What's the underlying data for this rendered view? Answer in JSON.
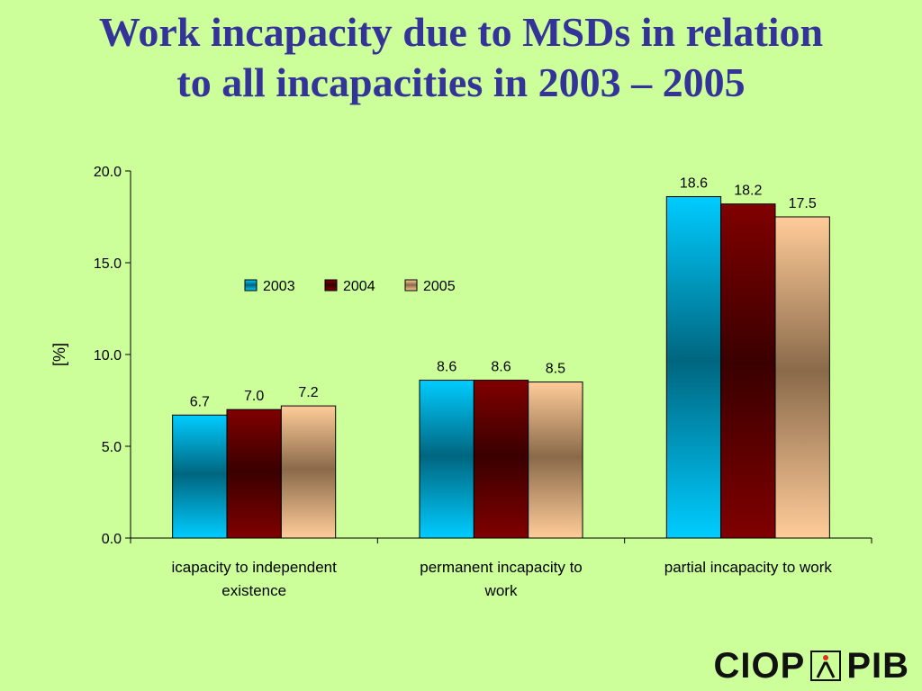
{
  "title": {
    "line1": "Work incapacity due to MSDs in relation",
    "line2": "to all incapacities in 2003 – 2005"
  },
  "logo": {
    "left": "CIOP",
    "right": "PIB"
  },
  "chart_data": {
    "type": "bar",
    "categories": [
      [
        "icapacity to independent",
        "existence"
      ],
      [
        "permanent incapacity to",
        "work"
      ],
      [
        "partial incapacity to work"
      ]
    ],
    "series": [
      {
        "name": "2003",
        "values": [
          6.7,
          8.6,
          18.6
        ],
        "labels": [
          "6.7",
          "8.6",
          "18.6"
        ],
        "color": "#00ccff",
        "dark": "#006680"
      },
      {
        "name": "2004",
        "values": [
          7.0,
          8.6,
          18.2
        ],
        "labels": [
          "7.0",
          "8.6",
          "18.2"
        ],
        "color": "#800000",
        "dark": "#3a0000"
      },
      {
        "name": "2005",
        "values": [
          7.2,
          8.5,
          17.5
        ],
        "labels": [
          "7.2",
          "8.5",
          "17.5"
        ],
        "color": "#ffcc99",
        "dark": "#8a6a4a"
      }
    ],
    "ylabel": "[%]",
    "ylim": [
      0,
      20
    ],
    "yticks": [
      "0.0",
      "5.0",
      "10.0",
      "15.0",
      "20.0"
    ],
    "legend_position": "top-left-inside",
    "grid": false
  }
}
